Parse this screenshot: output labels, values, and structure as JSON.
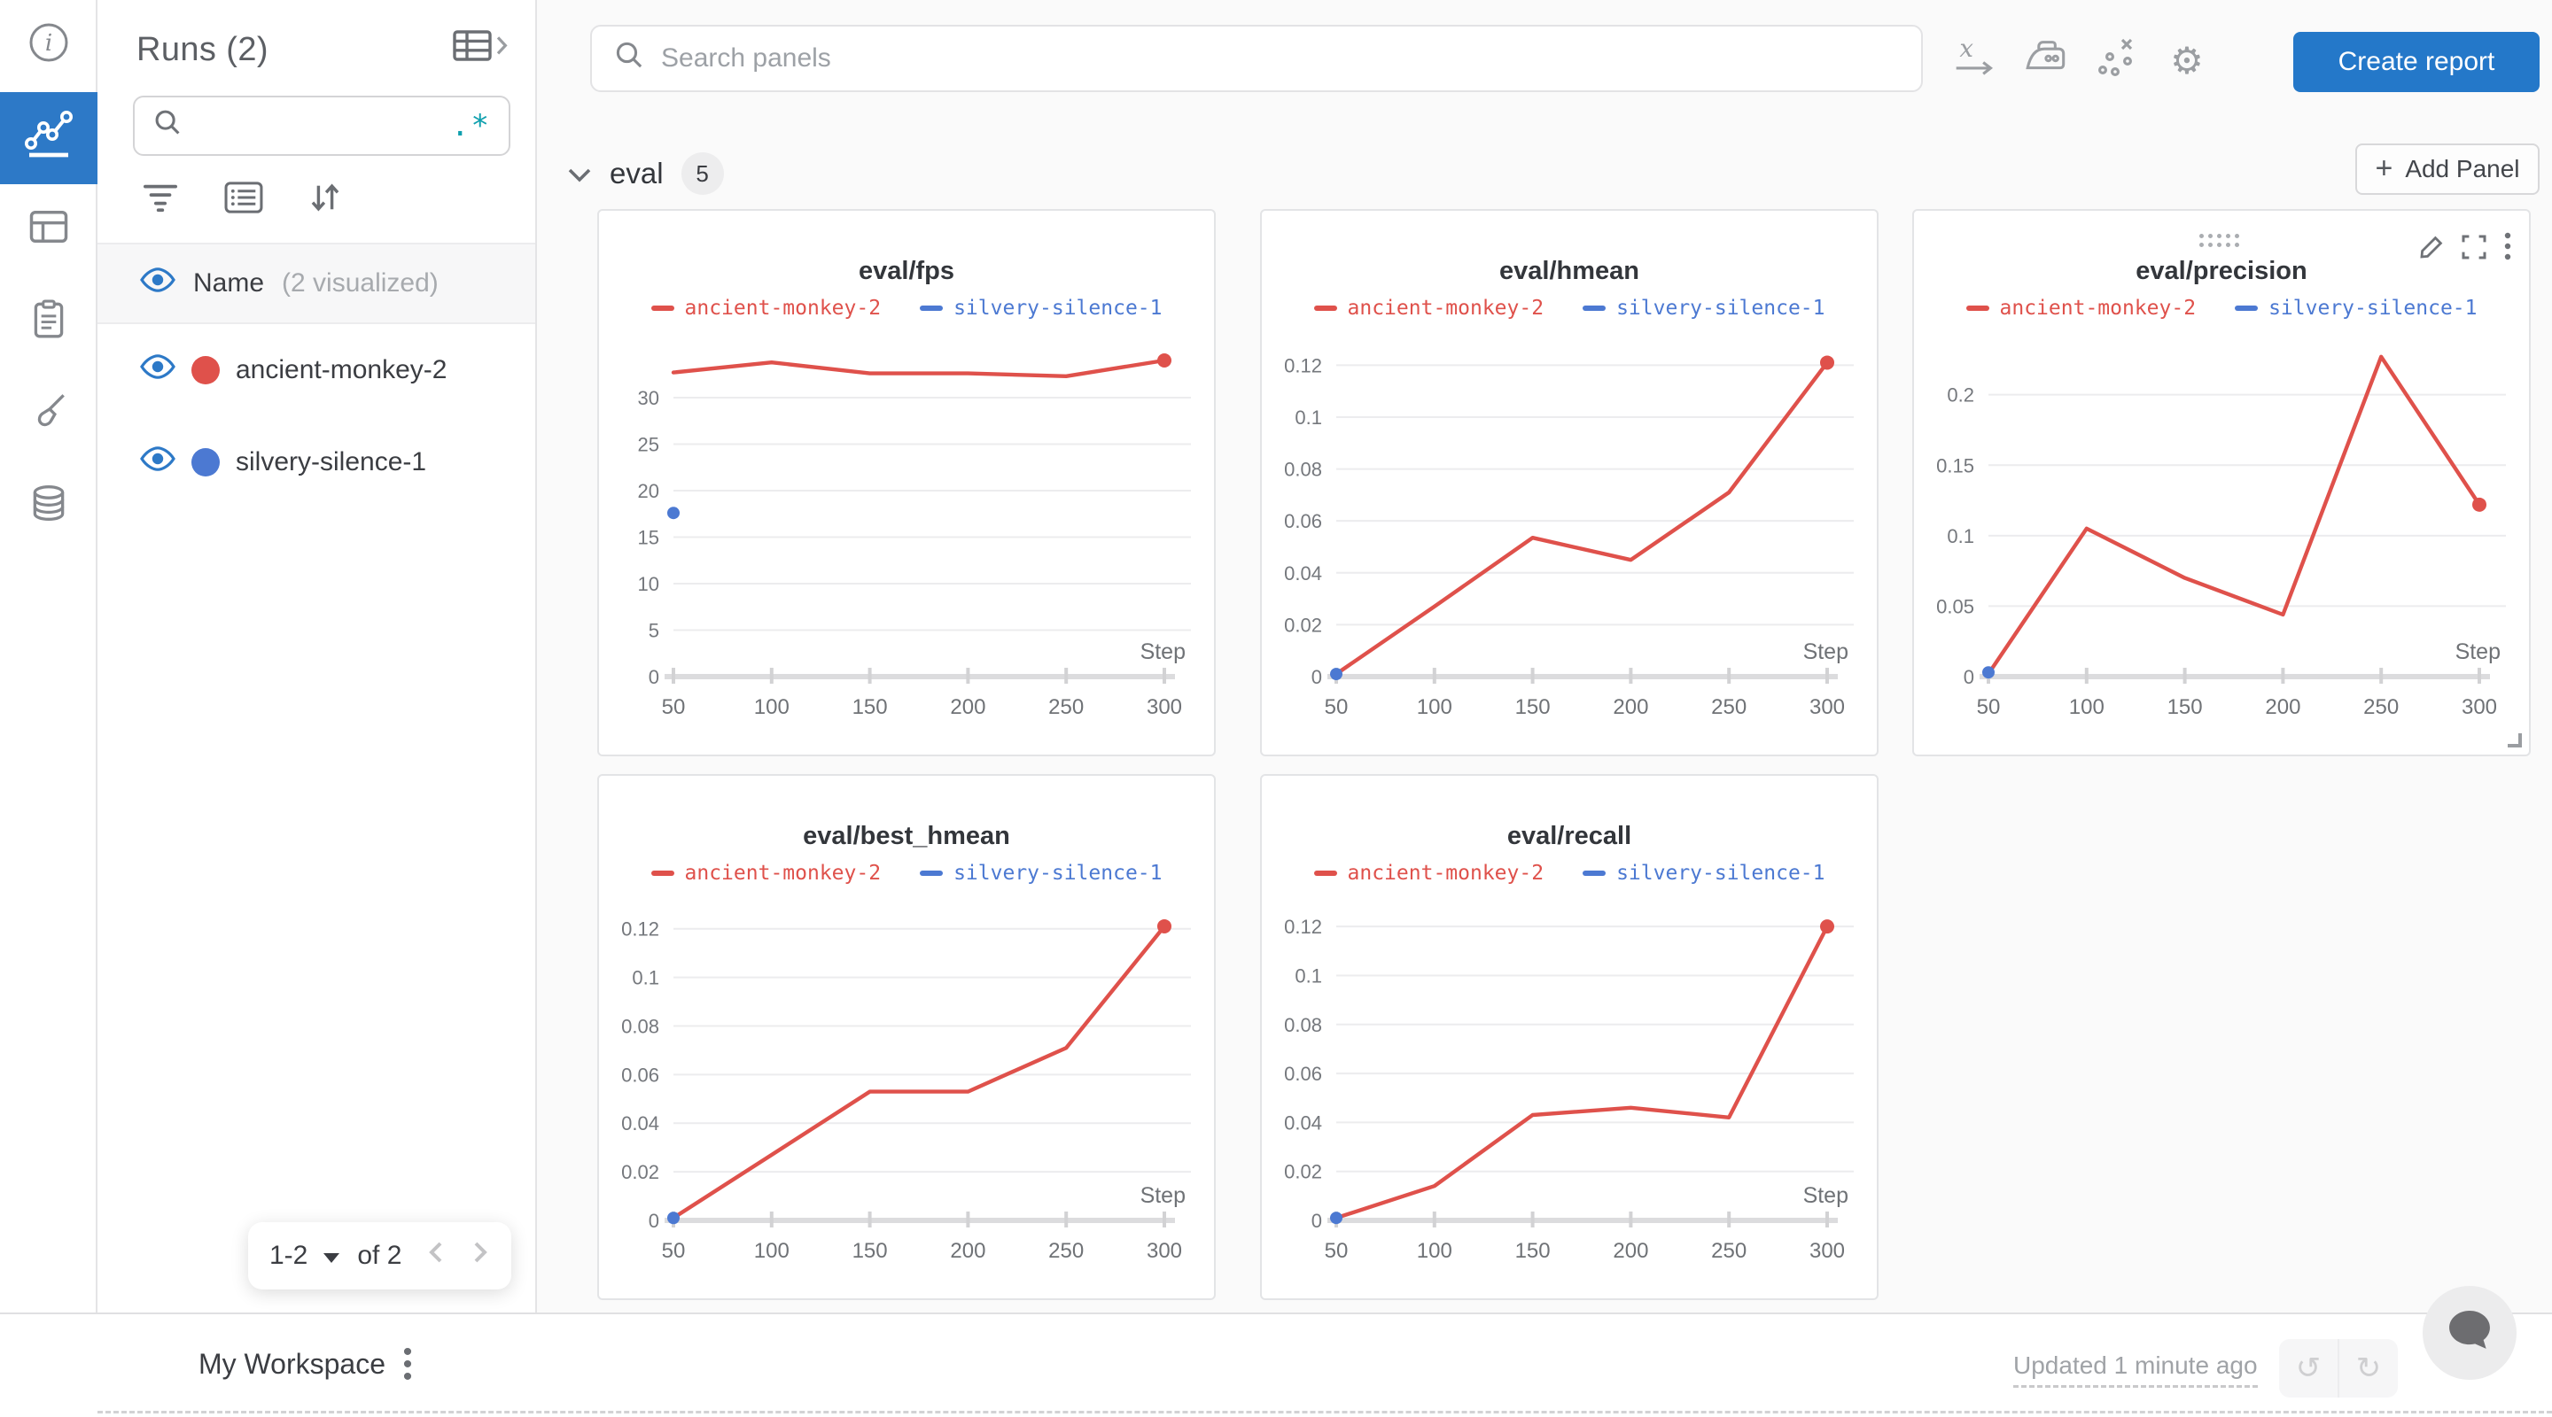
{
  "colors": {
    "accent_blue": "#2d79c7",
    "button_blue": "#2478c9",
    "run_red": "#df514b",
    "run_blue": "#4c79d2",
    "regex_teal": "#0fa0ae"
  },
  "rail": {
    "icons": [
      "info",
      "line-chart",
      "panels",
      "clipboard",
      "brush",
      "database"
    ]
  },
  "runs_panel": {
    "title": "Runs (2)",
    "search_placeholder": "",
    "regex_glyph": ".*",
    "header": {
      "label": "Name",
      "note": "(2 visualized)"
    },
    "runs": [
      {
        "name": "ancient-monkey-2",
        "color": "#df514b"
      },
      {
        "name": "silvery-silence-1",
        "color": "#4c79d2"
      }
    ],
    "pagination": {
      "range": "1-2",
      "of_label": "of 2"
    }
  },
  "topbar": {
    "search_placeholder": "Search panels",
    "create_report_label": "Create report"
  },
  "section": {
    "name": "eval",
    "count": "5",
    "add_panel_label": "Add Panel",
    "add_panel_plus": "+"
  },
  "panels": [
    {
      "key": "fps",
      "title": "eval/fps",
      "type": "line",
      "xlabel": "Step",
      "x": [
        50,
        100,
        150,
        200,
        250,
        300
      ],
      "xtick_labels": [
        "50",
        "100",
        "150",
        "200",
        "250",
        "300"
      ],
      "yticks": [
        0,
        5,
        10,
        15,
        20,
        25,
        30
      ],
      "ytick_labels": [
        "0",
        "5",
        "10",
        "15",
        "20",
        "25",
        "30"
      ],
      "ymax": 36,
      "show_controls": false,
      "series": [
        {
          "name": "ancient-monkey-2",
          "color": "#df514b",
          "values": [
            32.7,
            33.8,
            32.6,
            32.6,
            32.3,
            34.0
          ]
        },
        {
          "name": "silvery-silence-1",
          "color": "#4c79d2",
          "points": [
            [
              50,
              17.6
            ]
          ]
        }
      ]
    },
    {
      "key": "hmean",
      "title": "eval/hmean",
      "type": "line",
      "xlabel": "Step",
      "x": [
        50,
        100,
        150,
        200,
        250,
        300
      ],
      "xtick_labels": [
        "50",
        "100",
        "150",
        "200",
        "250",
        "300"
      ],
      "yticks": [
        0,
        0.02,
        0.04,
        0.06,
        0.08,
        0.1,
        0.12
      ],
      "ytick_labels": [
        "0",
        "0.02",
        "0.04",
        "0.06",
        "0.08",
        "0.1",
        "0.12"
      ],
      "ymax": 0.129,
      "show_controls": false,
      "series": [
        {
          "name": "ancient-monkey-2",
          "color": "#df514b",
          "values": [
            0.001,
            0.027,
            0.0535,
            0.045,
            0.071,
            0.121
          ]
        },
        {
          "name": "silvery-silence-1",
          "color": "#4c79d2",
          "points": [
            [
              50,
              0.001
            ]
          ]
        }
      ]
    },
    {
      "key": "precision",
      "title": "eval/precision",
      "type": "line",
      "xlabel": "Step",
      "x": [
        50,
        100,
        150,
        200,
        250,
        300
      ],
      "xtick_labels": [
        "50",
        "100",
        "150",
        "200",
        "250",
        "300"
      ],
      "yticks": [
        0,
        0.05,
        0.1,
        0.15,
        0.2
      ],
      "ytick_labels": [
        "0",
        "0.05",
        "0.1",
        "0.15",
        "0.2"
      ],
      "ymax": 0.2375,
      "show_controls": true,
      "series": [
        {
          "name": "ancient-monkey-2",
          "color": "#df514b",
          "values": [
            0.002,
            0.105,
            0.07,
            0.044,
            0.227,
            0.122
          ]
        },
        {
          "name": "silvery-silence-1",
          "color": "#4c79d2",
          "points": [
            [
              50,
              0.003
            ]
          ]
        }
      ]
    },
    {
      "key": "best_hmean",
      "title": "eval/best_hmean",
      "type": "line",
      "xlabel": "Step",
      "x": [
        50,
        100,
        150,
        200,
        250,
        300
      ],
      "xtick_labels": [
        "50",
        "100",
        "150",
        "200",
        "250",
        "300"
      ],
      "yticks": [
        0,
        0.02,
        0.04,
        0.06,
        0.08,
        0.1,
        0.12
      ],
      "ytick_labels": [
        "0",
        "0.02",
        "0.04",
        "0.06",
        "0.08",
        "0.1",
        "0.12"
      ],
      "ymax": 0.129,
      "show_controls": false,
      "series": [
        {
          "name": "ancient-monkey-2",
          "color": "#df514b",
          "values": [
            0.001,
            0.027,
            0.053,
            0.053,
            0.071,
            0.121
          ]
        },
        {
          "name": "silvery-silence-1",
          "color": "#4c79d2",
          "points": [
            [
              50,
              0.001
            ]
          ]
        }
      ]
    },
    {
      "key": "recall",
      "title": "eval/recall",
      "type": "line",
      "xlabel": "Step",
      "x": [
        50,
        100,
        150,
        200,
        250,
        300
      ],
      "xtick_labels": [
        "50",
        "100",
        "150",
        "200",
        "250",
        "300"
      ],
      "yticks": [
        0,
        0.02,
        0.04,
        0.06,
        0.08,
        0.1,
        0.12
      ],
      "ytick_labels": [
        "0",
        "0.02",
        "0.04",
        "0.06",
        "0.08",
        "0.1",
        "0.12"
      ],
      "ymax": 0.128,
      "show_controls": false,
      "series": [
        {
          "name": "ancient-monkey-2",
          "color": "#df514b",
          "values": [
            0.001,
            0.014,
            0.043,
            0.046,
            0.042,
            0.12
          ]
        },
        {
          "name": "silvery-silence-1",
          "color": "#4c79d2",
          "points": [
            [
              50,
              0.001
            ]
          ]
        }
      ]
    }
  ],
  "footer": {
    "workspace_label": "My Workspace",
    "updated_label": "Updated 1 minute ago"
  }
}
